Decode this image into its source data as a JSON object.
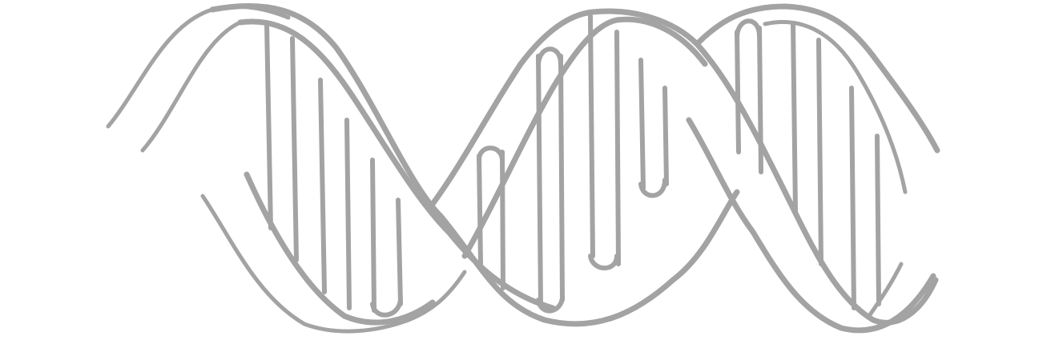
{
  "illustration": {
    "icon": "dna-double-helix-icon",
    "style": "line-art",
    "stroke_color": "#a3a3a3",
    "background_color": "#ffffff"
  }
}
